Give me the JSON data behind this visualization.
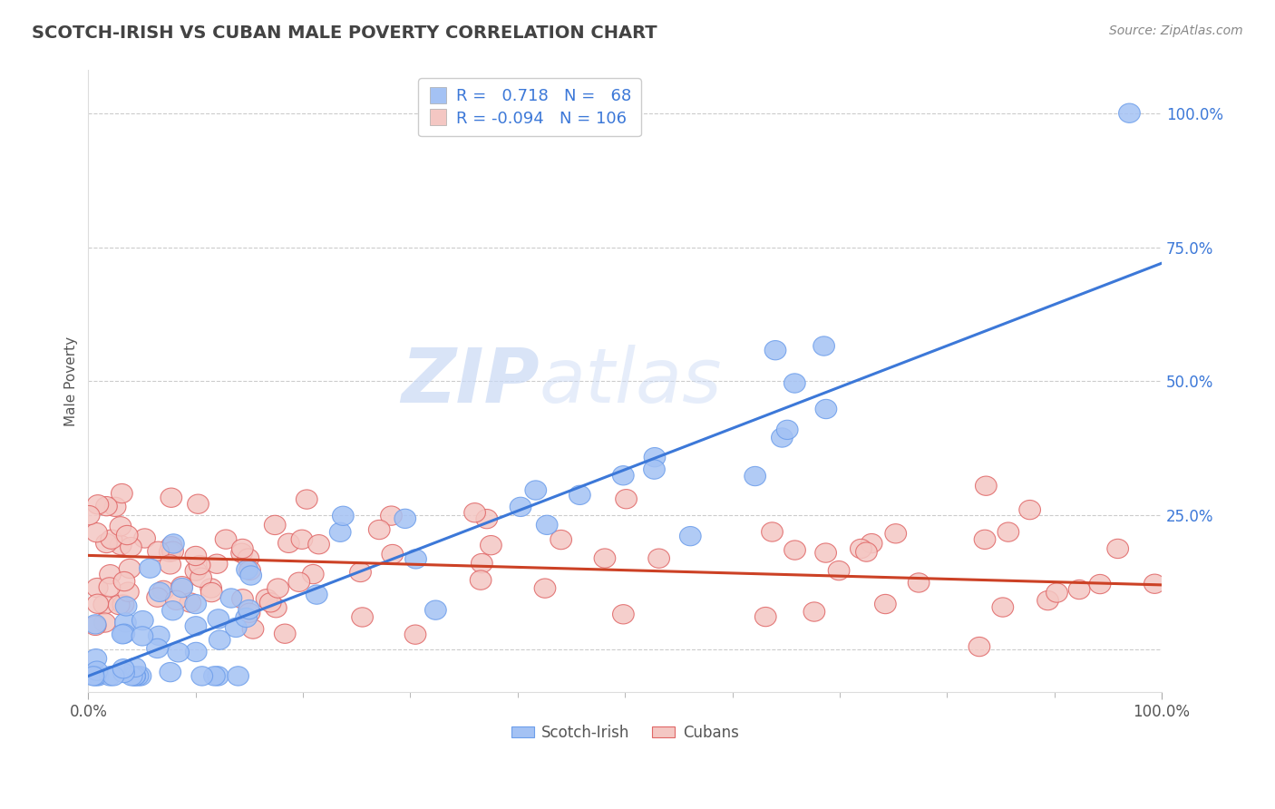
{
  "title": "SCOTCH-IRISH VS CUBAN MALE POVERTY CORRELATION CHART",
  "source": "Source: ZipAtlas.com",
  "ylabel": "Male Poverty",
  "xlim": [
    0,
    1
  ],
  "ylim": [
    -0.08,
    1.08
  ],
  "y_tick_positions": [
    0.0,
    0.25,
    0.5,
    0.75,
    1.0
  ],
  "y_tick_labels": [
    "",
    "25.0%",
    "50.0%",
    "75.0%",
    "100.0%"
  ],
  "scotch_irish_color": "#a4c2f4",
  "scotch_irish_edge": "#6d9eeb",
  "cuban_color": "#f4c7c3",
  "cuban_edge": "#e06666",
  "blue_line_color": "#3c78d8",
  "pink_line_color": "#cc4125",
  "R_scotch": 0.718,
  "N_scotch": 68,
  "R_cuban": -0.094,
  "N_cuban": 106,
  "watermark_zip": "ZIP",
  "watermark_atlas": "atlas",
  "watermark_color_zip": "#c9d9f5",
  "watermark_color_atlas": "#c9d9f5",
  "background_color": "#ffffff",
  "grid_color": "#cccccc",
  "title_color": "#434343",
  "axis_label_color": "#3c78d8",
  "slope_si": 0.77,
  "intercept_si": -0.05,
  "slope_cu": -0.055,
  "intercept_cu": 0.175
}
